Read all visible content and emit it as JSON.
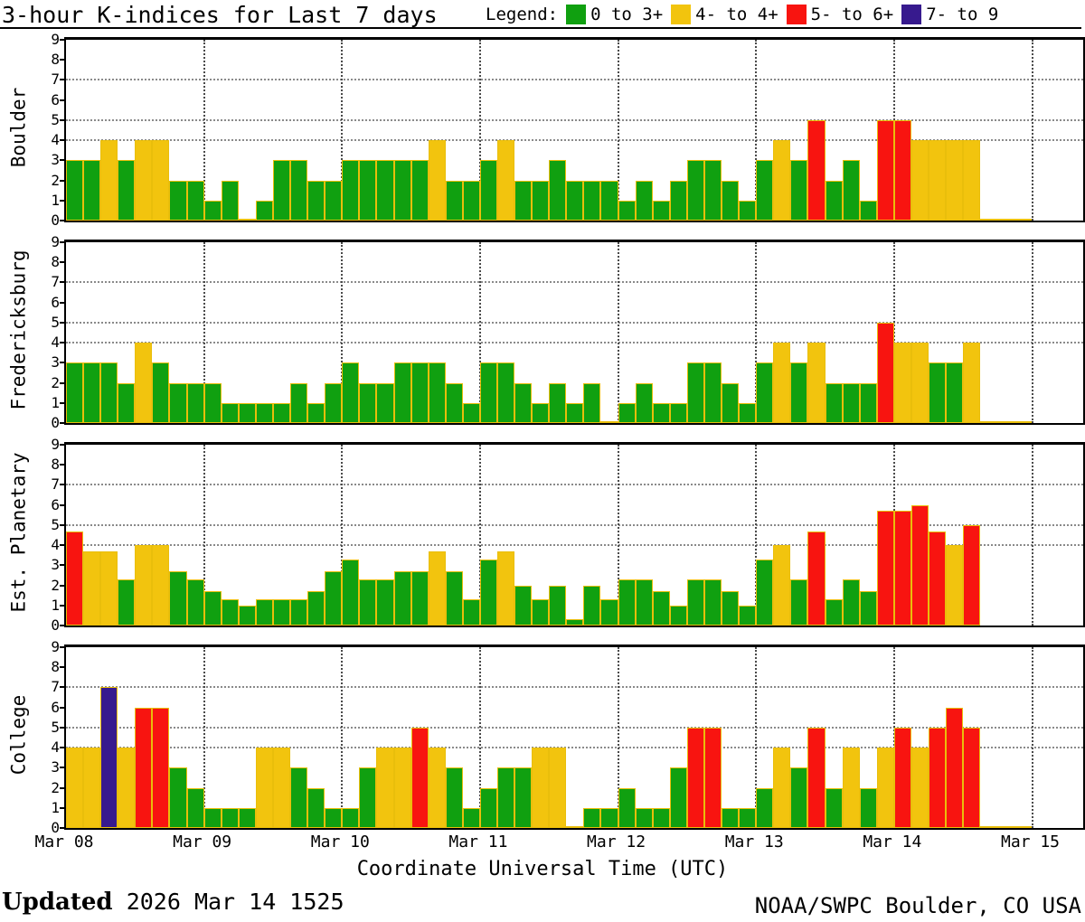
{
  "title": "3-hour K-indices for Last 7 days",
  "legend": {
    "label": "Legend:",
    "items": [
      {
        "label": "0 to 3+",
        "color": "#10A010"
      },
      {
        "label": "4- to 4+",
        "color": "#F2C40E"
      },
      {
        "label": "5- to 6+",
        "color": "#F81410"
      },
      {
        "label": "7- to 9",
        "color": "#371A8E"
      }
    ]
  },
  "xlabel": "Coordinate Universal Time (UTC)",
  "footer": {
    "updated_label": "Updated",
    "updated_value": "2026 Mar 14 1525",
    "source": "NOAA/SWPC Boulder, CO USA"
  },
  "chart_data": {
    "type": "bar",
    "title": "3-hour K-indices for Last 7 days",
    "interval_hours": 3,
    "x_tick_labels": [
      "Mar 08",
      "Mar 09",
      "Mar 10",
      "Mar 11",
      "Mar 12",
      "Mar 13",
      "Mar 14",
      "Mar 15"
    ],
    "xlabel": "Coordinate Universal Time (UTC)",
    "ylim": [
      0,
      9
    ],
    "y_ticks": [
      0,
      1,
      2,
      3,
      4,
      5,
      6,
      7,
      8,
      9
    ],
    "hgrid_levels": [
      4,
      5,
      7
    ],
    "color_scale": {
      "green": {
        "range": "0 to 3+",
        "hex": "#10A010"
      },
      "yellow": {
        "range": "4- to 4+",
        "hex": "#F2C40E"
      },
      "red": {
        "range": "5- to 6+",
        "hex": "#F81410"
      },
      "purple": {
        "range": "7- to 9",
        "hex": "#371A8E"
      }
    },
    "series": [
      {
        "name": "Boulder",
        "values_by_day": [
          [
            3,
            3,
            4,
            3,
            4,
            4,
            2,
            2
          ],
          [
            1,
            2,
            0,
            1,
            3,
            3,
            2,
            2
          ],
          [
            3,
            3,
            3,
            3,
            3,
            4,
            2,
            2
          ],
          [
            3,
            4,
            2,
            2,
            3,
            2,
            2,
            2
          ],
          [
            1,
            2,
            1,
            2,
            3,
            3,
            2,
            1
          ],
          [
            3,
            4,
            3,
            5,
            2,
            3,
            1,
            5
          ],
          [
            5,
            4,
            4,
            4,
            4,
            0,
            0,
            0
          ]
        ]
      },
      {
        "name": "Fredericksburg",
        "values_by_day": [
          [
            3,
            3,
            3,
            2,
            4,
            3,
            2,
            2
          ],
          [
            2,
            1,
            1,
            1,
            1,
            2,
            1,
            2
          ],
          [
            3,
            2,
            2,
            3,
            3,
            3,
            2,
            1
          ],
          [
            3,
            3,
            2,
            1,
            2,
            1,
            2,
            0
          ],
          [
            1,
            2,
            1,
            1,
            3,
            3,
            2,
            1
          ],
          [
            3,
            4,
            3,
            4,
            2,
            2,
            2,
            5
          ],
          [
            4,
            4,
            3,
            3,
            4,
            0,
            0,
            0
          ]
        ]
      },
      {
        "name": "Est. Planetary",
        "values_by_day": [
          [
            4.7,
            3.7,
            3.7,
            2.3,
            4,
            4,
            2.7,
            2.3
          ],
          [
            1.7,
            1.3,
            1,
            1.3,
            1.3,
            1.3,
            1.7,
            2.7
          ],
          [
            3.3,
            2.3,
            2.3,
            2.7,
            2.7,
            3.7,
            2.7,
            1.3
          ],
          [
            3.3,
            3.7,
            2,
            1.3,
            2,
            0.3,
            2,
            1.3
          ],
          [
            2.3,
            2.3,
            1.7,
            1,
            2.3,
            2.3,
            1.7,
            1
          ],
          [
            3.3,
            4,
            2.3,
            4.7,
            1.3,
            2.3,
            1.7,
            5.7
          ],
          [
            5.7,
            6,
            4.7,
            4,
            5,
            null,
            null,
            null
          ]
        ]
      },
      {
        "name": "College",
        "values_by_day": [
          [
            4,
            4,
            7,
            4,
            6,
            6,
            3,
            2
          ],
          [
            1,
            1,
            1,
            4,
            4,
            3,
            2,
            1
          ],
          [
            1,
            3,
            4,
            4,
            5,
            4,
            3,
            1
          ],
          [
            2,
            3,
            3,
            4,
            4,
            0,
            1,
            1
          ],
          [
            2,
            1,
            1,
            3,
            5,
            5,
            1,
            1
          ],
          [
            2,
            4,
            3,
            5,
            2,
            4,
            2,
            4
          ],
          [
            5,
            4,
            5,
            6,
            5,
            0,
            0,
            0
          ]
        ]
      }
    ]
  }
}
